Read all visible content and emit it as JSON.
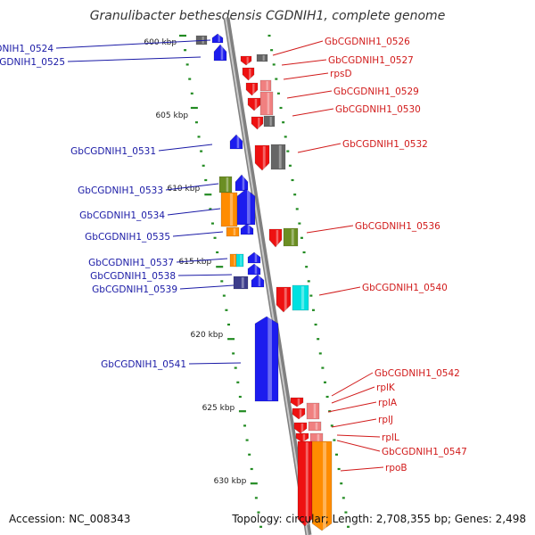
{
  "title": "Granulibacter bethesdensis CGDNIH1, complete genome",
  "footer": {
    "accession": "Accession: NC_008343",
    "summary": "Topology: circular; Length: 2,708,355 bp; Genes: 2,498"
  },
  "colors": {
    "backbone": "#8a8a8a",
    "tick": "#228b22",
    "label_left": "#1a1aa6",
    "label_right": "#d11a1a",
    "gene_red": "#ee1111",
    "gene_blue": "#1c1cee",
    "gene_orange": "#ff8c00",
    "gene_green": "#6b8e23",
    "gene_cyan": "#00e0e0",
    "gene_gray": "#666666",
    "gene_pink": "#f08080",
    "gene_navy": "#3c3c8a"
  },
  "scale_labels": [
    "600 kbp",
    "605 kbp",
    "610 kbp",
    "615 kbp",
    "620 kbp",
    "625 kbp",
    "630 kbp"
  ],
  "genes_left": [
    "GbCGDNIH1_0524",
    "GbCGDNIH1_0525",
    "GbCGDNIH1_0531",
    "GbCGDNIH1_0533",
    "GbCGDNIH1_0534",
    "GbCGDNIH1_0535",
    "GbCGDNIH1_0537",
    "GbCGDNIH1_0538",
    "GbCGDNIH1_0539",
    "GbCGDNIH1_0541"
  ],
  "genes_right": [
    "GbCGDNIH1_0526",
    "GbCGDNIH1_0527",
    "rpsD",
    "GbCGDNIH1_0529",
    "GbCGDNIH1_0530",
    "GbCGDNIH1_0532",
    "GbCGDNIH1_0536",
    "GbCGDNIH1_0540",
    "GbCGDNIH1_0542",
    "rplK",
    "rplA",
    "rplJ",
    "rplL",
    "GbCGDNIH1_0547",
    "rpoB"
  ]
}
